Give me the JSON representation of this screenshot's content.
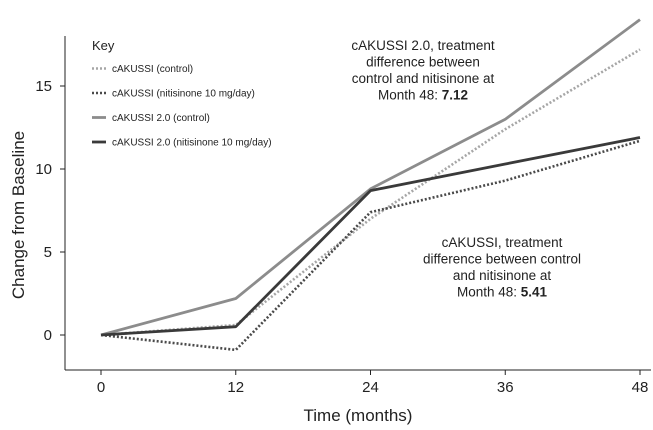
{
  "chart_data": {
    "type": "line",
    "xlabel": "Time (months)",
    "ylabel": "Change from Baseline",
    "x": [
      0,
      12,
      24,
      36,
      48
    ],
    "xticks": [
      "0",
      "12",
      "24",
      "36",
      "48"
    ],
    "yticks": [
      "0",
      "5",
      "10",
      "15"
    ],
    "xlim": [
      0,
      48
    ],
    "ylim": [
      -1.5,
      18.5
    ],
    "grid": false,
    "legend": {
      "title": "Key",
      "placement": "top-left"
    },
    "series": [
      {
        "name": "cAKUSSI (control)",
        "values": [
          0.0,
          0.6,
          7.0,
          12.4,
          17.2
        ],
        "color": "#a6a6a6",
        "style": "dotted"
      },
      {
        "name": "cAKUSSI (nitisinone 10 mg/day)",
        "values": [
          0.0,
          -0.9,
          7.4,
          9.3,
          11.7
        ],
        "color": "#4a4a4a",
        "style": "dotted"
      },
      {
        "name": "cAKUSSI 2.0 (control)",
        "values": [
          0.0,
          2.2,
          8.8,
          13.0,
          19.0
        ],
        "color": "#8c8c8c",
        "style": "solid"
      },
      {
        "name": "cAKUSSI 2.0 (nitisinone 10 mg/day)",
        "values": [
          0.0,
          0.5,
          8.7,
          10.3,
          11.9
        ],
        "color": "#3a3a3a",
        "style": "solid"
      }
    ],
    "annotations": [
      {
        "lines": [
          "cAKUSSI 2.0, treatment",
          "difference between",
          "control and nitisinone at"
        ],
        "last_line_prefix": "Month 48: ",
        "last_line_value": "7.12"
      },
      {
        "lines": [
          "cAKUSSI, treatment",
          "difference between control",
          "and nitisinone at"
        ],
        "last_line_prefix": "Month 48: ",
        "last_line_value": "5.41"
      }
    ]
  }
}
